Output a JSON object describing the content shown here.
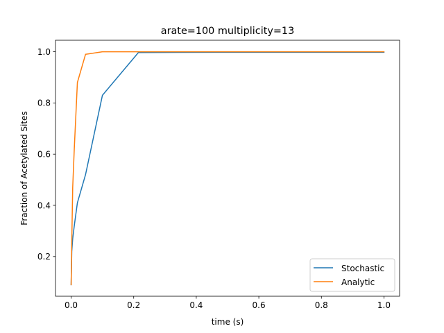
{
  "chart_data": {
    "type": "line",
    "title": "arate=100 multiplicity=13",
    "xlabel": "time (s)",
    "ylabel": "Fraction of Acetylated Sites",
    "xlim": [
      -0.05,
      1.05
    ],
    "ylim": [
      0.045,
      1.045
    ],
    "xticks": [
      0.0,
      0.2,
      0.4,
      0.6,
      0.8,
      1.0
    ],
    "xtick_labels": [
      "0.0",
      "0.2",
      "0.4",
      "0.6",
      "0.8",
      "1.0"
    ],
    "yticks": [
      0.2,
      0.4,
      0.6,
      0.8,
      1.0
    ],
    "ytick_labels": [
      "0.2",
      "0.4",
      "0.6",
      "0.8",
      "1.0"
    ],
    "grid": false,
    "legend_position": "lower right",
    "series": [
      {
        "name": "Stochastic",
        "color": "#1f77b4",
        "x": [
          0.0,
          0.002,
          0.005,
          0.01,
          0.02,
          0.046,
          0.1,
          0.215,
          0.46,
          1.0
        ],
        "y": [
          0.09,
          0.22,
          0.27,
          0.32,
          0.41,
          0.52,
          0.83,
          0.997,
          0.998,
          0.998
        ]
      },
      {
        "name": "Analytic",
        "color": "#ff7f0e",
        "x": [
          0.0,
          0.002,
          0.005,
          0.01,
          0.02,
          0.046,
          0.1,
          0.215,
          0.46,
          1.0
        ],
        "y": [
          0.09,
          0.26,
          0.47,
          0.62,
          0.88,
          0.99,
          1.0,
          1.0,
          1.0,
          1.0
        ]
      }
    ]
  }
}
